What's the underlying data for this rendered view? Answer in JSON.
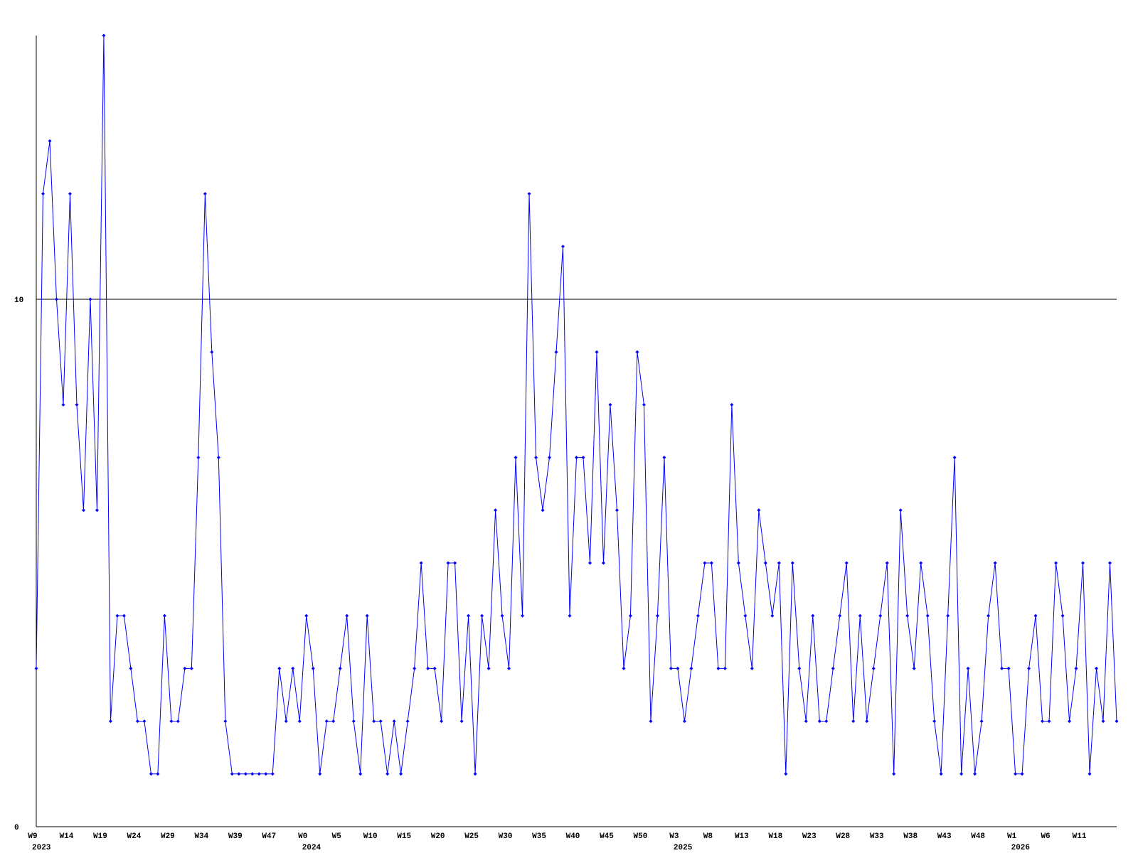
{
  "chart_data": {
    "type": "line",
    "categories": [
      "W9",
      null,
      null,
      null,
      null,
      "W14",
      null,
      null,
      null,
      null,
      "W19",
      null,
      null,
      null,
      null,
      "W24",
      null,
      null,
      null,
      null,
      "W29",
      null,
      null,
      null,
      null,
      "W34",
      null,
      null,
      null,
      null,
      "W39",
      null,
      null,
      null,
      null,
      "W47",
      null,
      null,
      null,
      null,
      "W0",
      null,
      null,
      null,
      null,
      "W5",
      null,
      null,
      null,
      null,
      "W10",
      null,
      null,
      null,
      null,
      "W15",
      null,
      null,
      null,
      null,
      "W20",
      null,
      null,
      null,
      null,
      "W25",
      null,
      null,
      null,
      null,
      "W30",
      null,
      null,
      null,
      null,
      "W35",
      null,
      null,
      null,
      null,
      "W40",
      null,
      null,
      null,
      null,
      "W45",
      null,
      null,
      null,
      null,
      "W50",
      null,
      null,
      null,
      null,
      "W3",
      null,
      null,
      null,
      null,
      "W8",
      null,
      null,
      null,
      null,
      "W13",
      null,
      null,
      null,
      null,
      "W18",
      null,
      null,
      null,
      null,
      "W23",
      null,
      null,
      null,
      null,
      "W28",
      null,
      null,
      null,
      null,
      "W33",
      null,
      null,
      null,
      null,
      "W38",
      null,
      null,
      null,
      null,
      "W43",
      null,
      null,
      null,
      null,
      "W48",
      null,
      null,
      null,
      null,
      "W1",
      null,
      null,
      null,
      null,
      "W6",
      null,
      null,
      null,
      null,
      "W11",
      null,
      null,
      null,
      null,
      null
    ],
    "year_labels": [
      "2023",
      null,
      null,
      null,
      null,
      null,
      null,
      null,
      null,
      null,
      null,
      null,
      null,
      null,
      null,
      null,
      null,
      null,
      null,
      null,
      null,
      null,
      null,
      null,
      null,
      null,
      null,
      null,
      null,
      null,
      null,
      null,
      null,
      null,
      null,
      null,
      null,
      null,
      null,
      null,
      "2024",
      null,
      null,
      null,
      null,
      null,
      null,
      null,
      null,
      null,
      null,
      null,
      null,
      null,
      null,
      null,
      null,
      null,
      null,
      null,
      null,
      null,
      null,
      null,
      null,
      null,
      null,
      null,
      null,
      null,
      null,
      null,
      null,
      null,
      null,
      null,
      null,
      null,
      null,
      null,
      null,
      null,
      null,
      null,
      null,
      null,
      null,
      null,
      null,
      null,
      null,
      null,
      null,
      null,
      null,
      "2025",
      null,
      null,
      null,
      null,
      null,
      null,
      null,
      null,
      null,
      null,
      null,
      null,
      null,
      null,
      null,
      null,
      null,
      null,
      null,
      null,
      null,
      null,
      null,
      null,
      null,
      null,
      null,
      null,
      null,
      null,
      null,
      null,
      null,
      null,
      null,
      null,
      null,
      null,
      null,
      null,
      null,
      null,
      null,
      null,
      null,
      null,
      null,
      null,
      null,
      "2026",
      null,
      null,
      null,
      null,
      null,
      null,
      null,
      null,
      null,
      null,
      null,
      null,
      null,
      null,
      null
    ],
    "values": [
      3,
      12,
      13,
      10,
      8,
      12,
      8,
      6,
      10,
      6,
      15,
      2,
      4,
      4,
      3,
      2,
      2,
      1,
      1,
      4,
      2,
      2,
      3,
      3,
      7,
      12,
      9,
      7,
      2,
      1,
      1,
      1,
      1,
      1,
      1,
      1,
      3,
      2,
      3,
      2,
      4,
      3,
      1,
      2,
      2,
      3,
      4,
      2,
      1,
      4,
      2,
      2,
      1,
      2,
      1,
      2,
      3,
      5,
      3,
      3,
      2,
      5,
      5,
      2,
      4,
      1,
      4,
      3,
      6,
      4,
      3,
      7,
      4,
      12,
      7,
      6,
      7,
      9,
      11,
      4,
      7,
      7,
      5,
      9,
      5,
      8,
      6,
      3,
      4,
      9,
      8,
      2,
      4,
      7,
      3,
      3,
      2,
      3,
      4,
      5,
      5,
      3,
      3,
      8,
      5,
      4,
      3,
      6,
      5,
      4,
      5,
      1,
      5,
      3,
      2,
      4,
      2,
      2,
      3,
      4,
      5,
      2,
      4,
      2,
      3,
      4,
      5,
      1,
      6,
      4,
      3,
      5,
      4,
      2,
      1,
      4,
      7,
      1,
      3,
      1,
      2,
      4,
      5,
      3,
      3,
      1,
      1,
      3,
      4,
      2,
      2,
      5,
      4,
      2,
      3,
      5,
      1,
      3,
      2,
      5,
      2
    ],
    "color": "#0000ff",
    "ylim": [
      0,
      15
    ],
    "yticks": [
      0,
      10
    ],
    "grid": true
  }
}
